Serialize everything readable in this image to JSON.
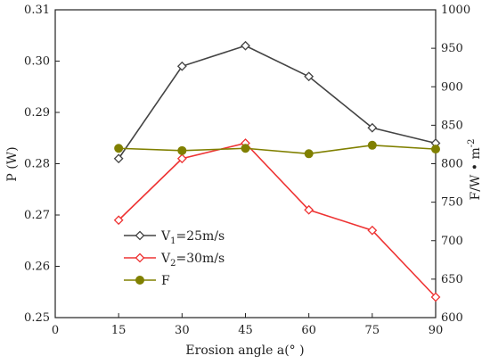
{
  "chart_data": {
    "type": "line",
    "xlabel": "Erosion angle a(° )",
    "ylabel_left": "P (W)",
    "ylabel_right": "F/W • m",
    "ylabel_right_sup": "-2",
    "xlim": [
      0,
      90
    ],
    "xticks": [
      0,
      15,
      30,
      45,
      60,
      75,
      90
    ],
    "ylim_left": [
      0.25,
      0.31
    ],
    "yticks_left": [
      "0.25",
      "0.26",
      "0.27",
      "0.28",
      "0.29",
      "0.30",
      "0.31"
    ],
    "ylim_right": [
      600,
      1000
    ],
    "yticks_right": [
      "600",
      "650",
      "700",
      "750",
      "800",
      "850",
      "900",
      "950",
      "1000"
    ],
    "grid": false,
    "legend_position": "lower-left",
    "x": [
      15,
      30,
      45,
      60,
      75,
      90
    ],
    "series": [
      {
        "name_main": "V",
        "name_sub": "1",
        "name_rest": "=25m/s",
        "axis": "left",
        "marker": "diamond",
        "color": "#444444",
        "values": [
          0.281,
          0.299,
          0.303,
          0.297,
          0.287,
          0.284
        ]
      },
      {
        "name_main": "V",
        "name_sub": "2",
        "name_rest": "=30m/s",
        "axis": "left",
        "marker": "diamond",
        "color": "#ee3333",
        "values": [
          0.269,
          0.281,
          0.284,
          0.271,
          0.267,
          0.254
        ]
      },
      {
        "name_main": "F",
        "name_sub": "",
        "name_rest": "",
        "axis": "right",
        "marker": "circle",
        "color": "#808000",
        "values": [
          820,
          817,
          820,
          813,
          824,
          819
        ]
      }
    ]
  }
}
